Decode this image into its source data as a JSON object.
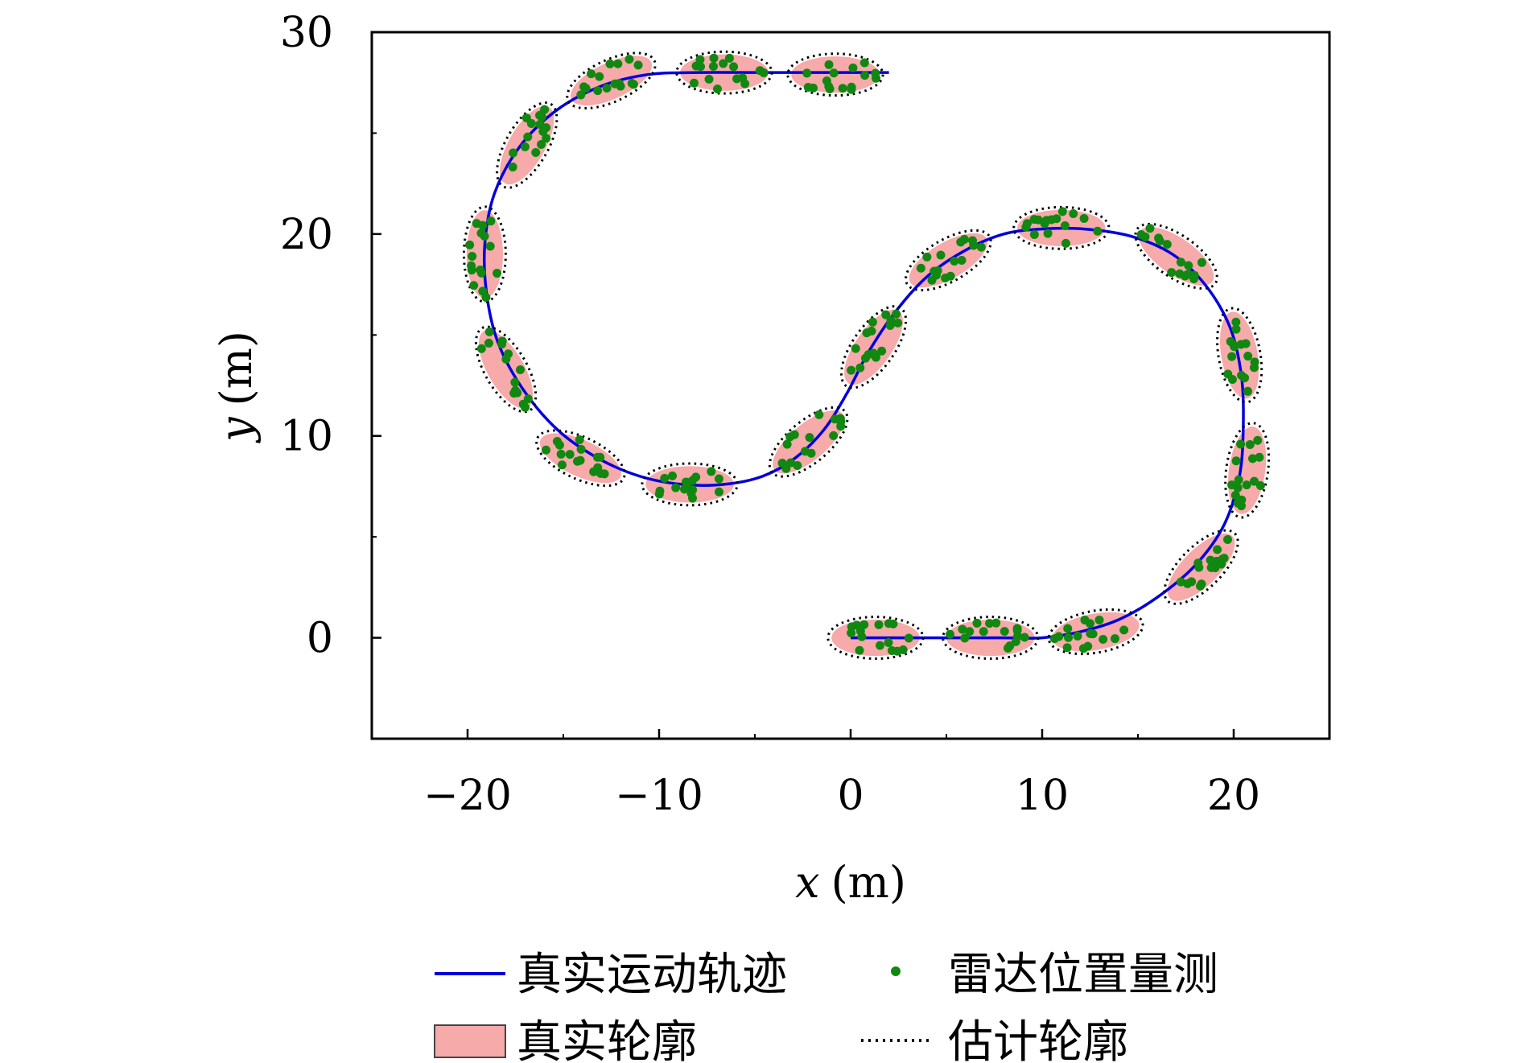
{
  "chart_data": {
    "type": "scatter",
    "xlabel_var": "x",
    "xlabel_unit": "(m)",
    "ylabel_var": "y",
    "ylabel_unit": "(m)",
    "xlim": [
      -25,
      25
    ],
    "ylim": [
      -5,
      30
    ],
    "xticks": [
      -20,
      -10,
      0,
      10,
      20
    ],
    "xtick_labels": [
      "−20",
      "−10",
      "0",
      "10",
      "20"
    ],
    "yticks": [
      0,
      10,
      20,
      30
    ],
    "ytick_labels": [
      "0",
      "10",
      "20",
      "30"
    ],
    "xminor": [
      -15,
      -5,
      5,
      15
    ],
    "yminor": [
      5,
      15,
      25
    ],
    "grid": false,
    "legend_position": "bottom",
    "colors": {
      "trajectory": "#0000dd",
      "measurement": "#118811",
      "true_extent_fill": "#f6aaaa",
      "estimated_outline": "#000000"
    },
    "legend": {
      "trajectory": "真实运动轨迹",
      "measurement": "雷达位置量测",
      "true_extent": "真实轮廓",
      "estimated_extent": "估计轮廓"
    },
    "trajectory": [
      [
        0,
        0
      ],
      [
        2,
        0
      ],
      [
        4,
        0
      ],
      [
        6,
        0
      ],
      [
        8,
        0
      ],
      [
        10,
        0
      ],
      [
        12,
        0.3
      ],
      [
        14,
        0.9
      ],
      [
        16,
        2.0
      ],
      [
        18,
        3.6
      ],
      [
        19.5,
        5.6
      ],
      [
        20.3,
        8.0
      ],
      [
        20.5,
        10.5
      ],
      [
        20.4,
        13.0
      ],
      [
        19.8,
        15.4
      ],
      [
        18.5,
        17.5
      ],
      [
        16.8,
        19.0
      ],
      [
        14.6,
        19.9
      ],
      [
        12.2,
        20.25
      ],
      [
        10.0,
        20.25
      ],
      [
        8.0,
        20.0
      ],
      [
        6.0,
        19.2
      ],
      [
        4.0,
        17.9
      ],
      [
        2.3,
        16.1
      ],
      [
        0.9,
        14.1
      ],
      [
        -0.2,
        12.1
      ],
      [
        -1.4,
        10.3
      ],
      [
        -2.9,
        8.9
      ],
      [
        -4.6,
        8.0
      ],
      [
        -6.6,
        7.6
      ],
      [
        -8.8,
        7.6
      ],
      [
        -11.0,
        8.0
      ],
      [
        -13.2,
        8.9
      ],
      [
        -15.3,
        10.3
      ],
      [
        -17.1,
        12.3
      ],
      [
        -18.4,
        14.6
      ],
      [
        -19.0,
        17.0
      ],
      [
        -19.1,
        19.5
      ],
      [
        -18.6,
        22.0
      ],
      [
        -17.3,
        24.3
      ],
      [
        -15.4,
        26.1
      ],
      [
        -13.1,
        27.3
      ],
      [
        -10.6,
        27.9
      ],
      [
        -8.0,
        28.0
      ],
      [
        -4.0,
        28.0
      ],
      [
        0.0,
        28.0
      ],
      [
        2.0,
        28.0
      ]
    ],
    "extents": [
      {
        "x": 1.3,
        "y": 0.0,
        "semi_major": 2.3,
        "semi_minor": 0.9,
        "angle": 0
      },
      {
        "x": 7.3,
        "y": 0.0,
        "semi_major": 2.3,
        "semi_minor": 0.9,
        "angle": 0
      },
      {
        "x": 12.8,
        "y": 0.3,
        "semi_major": 2.3,
        "semi_minor": 0.9,
        "angle": 10
      },
      {
        "x": 18.3,
        "y": 3.5,
        "semi_major": 2.3,
        "semi_minor": 0.9,
        "angle": 45
      },
      {
        "x": 20.7,
        "y": 8.3,
        "semi_major": 2.3,
        "semi_minor": 0.9,
        "angle": 82
      },
      {
        "x": 20.3,
        "y": 14.0,
        "semi_major": 2.3,
        "semi_minor": 0.9,
        "angle": 100
      },
      {
        "x": 17.0,
        "y": 18.9,
        "semi_major": 2.3,
        "semi_minor": 0.9,
        "angle": 145
      },
      {
        "x": 11.0,
        "y": 20.3,
        "semi_major": 2.3,
        "semi_minor": 0.9,
        "angle": 180
      },
      {
        "x": 5.1,
        "y": 18.7,
        "semi_major": 2.3,
        "semi_minor": 0.9,
        "angle": 210
      },
      {
        "x": 1.2,
        "y": 14.4,
        "semi_major": 2.3,
        "semi_minor": 0.9,
        "angle": 235
      },
      {
        "x": -2.2,
        "y": 9.7,
        "semi_major": 2.3,
        "semi_minor": 0.9,
        "angle": 220
      },
      {
        "x": -8.4,
        "y": 7.6,
        "semi_major": 2.3,
        "semi_minor": 0.9,
        "angle": 180
      },
      {
        "x": -14.1,
        "y": 8.9,
        "semi_major": 2.3,
        "semi_minor": 0.9,
        "angle": 155
      },
      {
        "x": -18.0,
        "y": 13.3,
        "semi_major": 2.3,
        "semi_minor": 0.9,
        "angle": 120
      },
      {
        "x": -19.1,
        "y": 19.0,
        "semi_major": 2.3,
        "semi_minor": 0.9,
        "angle": 90
      },
      {
        "x": -16.9,
        "y": 24.4,
        "semi_major": 2.3,
        "semi_minor": 0.9,
        "angle": 60
      },
      {
        "x": -12.5,
        "y": 27.6,
        "semi_major": 2.3,
        "semi_minor": 0.9,
        "angle": 25
      },
      {
        "x": -6.6,
        "y": 28.0,
        "semi_major": 2.3,
        "semi_minor": 0.9,
        "angle": 0
      },
      {
        "x": -0.8,
        "y": 27.9,
        "semi_major": 2.3,
        "semi_minor": 0.9,
        "angle": 0
      }
    ],
    "measurements_per_extent": 16
  }
}
